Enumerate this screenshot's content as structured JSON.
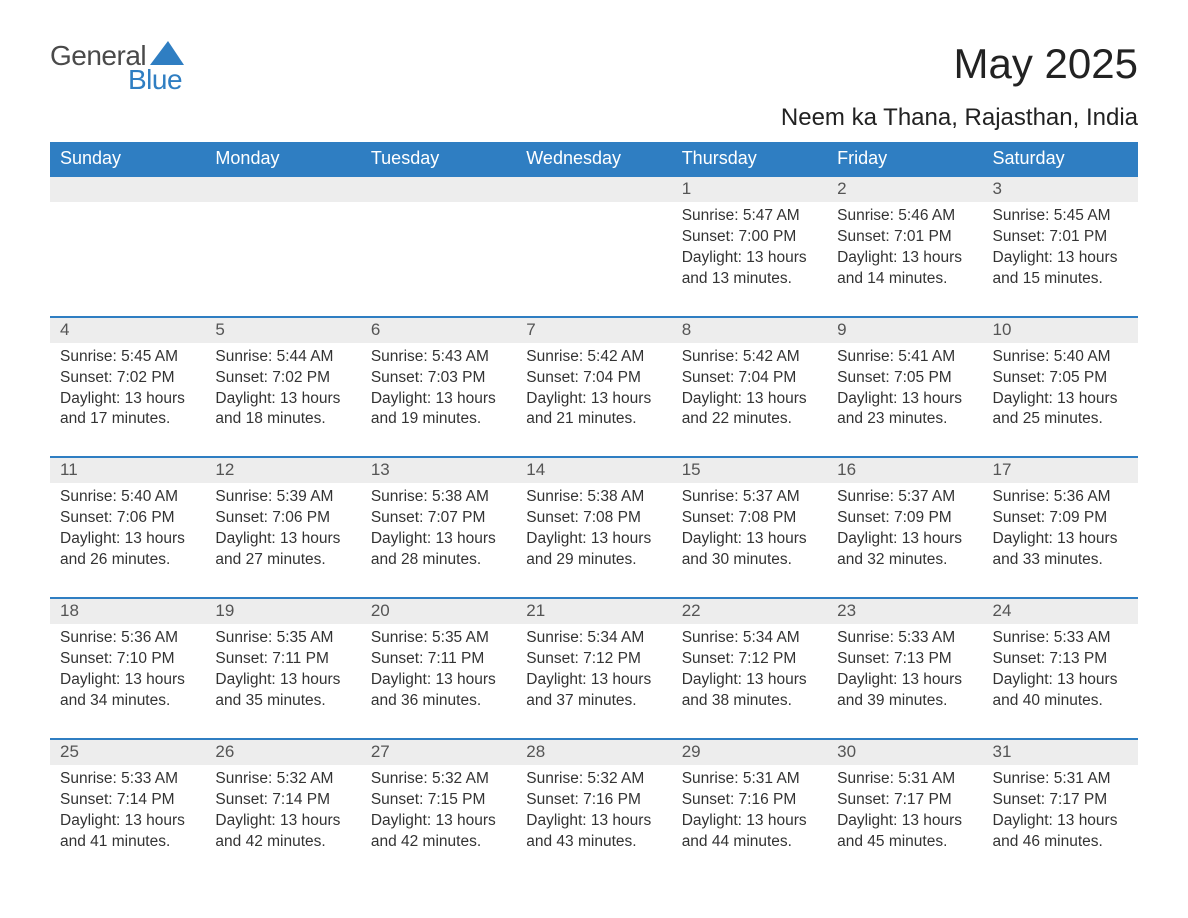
{
  "logo": {
    "text_general": "General",
    "text_blue": "Blue",
    "triangle_color": "#2f7ec2"
  },
  "header": {
    "month_title": "May 2025",
    "location": "Neem ka Thana, Rajasthan, India"
  },
  "colors": {
    "header_bg": "#2f7ec2",
    "header_text": "#ffffff",
    "daynum_bg": "#ededed",
    "daynum_text": "#555555",
    "body_text": "#333333",
    "border": "#2f7ec2",
    "page_bg": "#ffffff"
  },
  "typography": {
    "title_fontsize": 42,
    "location_fontsize": 24,
    "weekday_fontsize": 18,
    "daynum_fontsize": 17,
    "cell_fontsize": 15.5
  },
  "weekdays": [
    "Sunday",
    "Monday",
    "Tuesday",
    "Wednesday",
    "Thursday",
    "Friday",
    "Saturday"
  ],
  "weeks": [
    [
      null,
      null,
      null,
      null,
      {
        "day": "1",
        "sunrise": "Sunrise: 5:47 AM",
        "sunset": "Sunset: 7:00 PM",
        "daylight": "Daylight: 13 hours and 13 minutes."
      },
      {
        "day": "2",
        "sunrise": "Sunrise: 5:46 AM",
        "sunset": "Sunset: 7:01 PM",
        "daylight": "Daylight: 13 hours and 14 minutes."
      },
      {
        "day": "3",
        "sunrise": "Sunrise: 5:45 AM",
        "sunset": "Sunset: 7:01 PM",
        "daylight": "Daylight: 13 hours and 15 minutes."
      }
    ],
    [
      {
        "day": "4",
        "sunrise": "Sunrise: 5:45 AM",
        "sunset": "Sunset: 7:02 PM",
        "daylight": "Daylight: 13 hours and 17 minutes."
      },
      {
        "day": "5",
        "sunrise": "Sunrise: 5:44 AM",
        "sunset": "Sunset: 7:02 PM",
        "daylight": "Daylight: 13 hours and 18 minutes."
      },
      {
        "day": "6",
        "sunrise": "Sunrise: 5:43 AM",
        "sunset": "Sunset: 7:03 PM",
        "daylight": "Daylight: 13 hours and 19 minutes."
      },
      {
        "day": "7",
        "sunrise": "Sunrise: 5:42 AM",
        "sunset": "Sunset: 7:04 PM",
        "daylight": "Daylight: 13 hours and 21 minutes."
      },
      {
        "day": "8",
        "sunrise": "Sunrise: 5:42 AM",
        "sunset": "Sunset: 7:04 PM",
        "daylight": "Daylight: 13 hours and 22 minutes."
      },
      {
        "day": "9",
        "sunrise": "Sunrise: 5:41 AM",
        "sunset": "Sunset: 7:05 PM",
        "daylight": "Daylight: 13 hours and 23 minutes."
      },
      {
        "day": "10",
        "sunrise": "Sunrise: 5:40 AM",
        "sunset": "Sunset: 7:05 PM",
        "daylight": "Daylight: 13 hours and 25 minutes."
      }
    ],
    [
      {
        "day": "11",
        "sunrise": "Sunrise: 5:40 AM",
        "sunset": "Sunset: 7:06 PM",
        "daylight": "Daylight: 13 hours and 26 minutes."
      },
      {
        "day": "12",
        "sunrise": "Sunrise: 5:39 AM",
        "sunset": "Sunset: 7:06 PM",
        "daylight": "Daylight: 13 hours and 27 minutes."
      },
      {
        "day": "13",
        "sunrise": "Sunrise: 5:38 AM",
        "sunset": "Sunset: 7:07 PM",
        "daylight": "Daylight: 13 hours and 28 minutes."
      },
      {
        "day": "14",
        "sunrise": "Sunrise: 5:38 AM",
        "sunset": "Sunset: 7:08 PM",
        "daylight": "Daylight: 13 hours and 29 minutes."
      },
      {
        "day": "15",
        "sunrise": "Sunrise: 5:37 AM",
        "sunset": "Sunset: 7:08 PM",
        "daylight": "Daylight: 13 hours and 30 minutes."
      },
      {
        "day": "16",
        "sunrise": "Sunrise: 5:37 AM",
        "sunset": "Sunset: 7:09 PM",
        "daylight": "Daylight: 13 hours and 32 minutes."
      },
      {
        "day": "17",
        "sunrise": "Sunrise: 5:36 AM",
        "sunset": "Sunset: 7:09 PM",
        "daylight": "Daylight: 13 hours and 33 minutes."
      }
    ],
    [
      {
        "day": "18",
        "sunrise": "Sunrise: 5:36 AM",
        "sunset": "Sunset: 7:10 PM",
        "daylight": "Daylight: 13 hours and 34 minutes."
      },
      {
        "day": "19",
        "sunrise": "Sunrise: 5:35 AM",
        "sunset": "Sunset: 7:11 PM",
        "daylight": "Daylight: 13 hours and 35 minutes."
      },
      {
        "day": "20",
        "sunrise": "Sunrise: 5:35 AM",
        "sunset": "Sunset: 7:11 PM",
        "daylight": "Daylight: 13 hours and 36 minutes."
      },
      {
        "day": "21",
        "sunrise": "Sunrise: 5:34 AM",
        "sunset": "Sunset: 7:12 PM",
        "daylight": "Daylight: 13 hours and 37 minutes."
      },
      {
        "day": "22",
        "sunrise": "Sunrise: 5:34 AM",
        "sunset": "Sunset: 7:12 PM",
        "daylight": "Daylight: 13 hours and 38 minutes."
      },
      {
        "day": "23",
        "sunrise": "Sunrise: 5:33 AM",
        "sunset": "Sunset: 7:13 PM",
        "daylight": "Daylight: 13 hours and 39 minutes."
      },
      {
        "day": "24",
        "sunrise": "Sunrise: 5:33 AM",
        "sunset": "Sunset: 7:13 PM",
        "daylight": "Daylight: 13 hours and 40 minutes."
      }
    ],
    [
      {
        "day": "25",
        "sunrise": "Sunrise: 5:33 AM",
        "sunset": "Sunset: 7:14 PM",
        "daylight": "Daylight: 13 hours and 41 minutes."
      },
      {
        "day": "26",
        "sunrise": "Sunrise: 5:32 AM",
        "sunset": "Sunset: 7:14 PM",
        "daylight": "Daylight: 13 hours and 42 minutes."
      },
      {
        "day": "27",
        "sunrise": "Sunrise: 5:32 AM",
        "sunset": "Sunset: 7:15 PM",
        "daylight": "Daylight: 13 hours and 42 minutes."
      },
      {
        "day": "28",
        "sunrise": "Sunrise: 5:32 AM",
        "sunset": "Sunset: 7:16 PM",
        "daylight": "Daylight: 13 hours and 43 minutes."
      },
      {
        "day": "29",
        "sunrise": "Sunrise: 5:31 AM",
        "sunset": "Sunset: 7:16 PM",
        "daylight": "Daylight: 13 hours and 44 minutes."
      },
      {
        "day": "30",
        "sunrise": "Sunrise: 5:31 AM",
        "sunset": "Sunset: 7:17 PM",
        "daylight": "Daylight: 13 hours and 45 minutes."
      },
      {
        "day": "31",
        "sunrise": "Sunrise: 5:31 AM",
        "sunset": "Sunset: 7:17 PM",
        "daylight": "Daylight: 13 hours and 46 minutes."
      }
    ]
  ]
}
